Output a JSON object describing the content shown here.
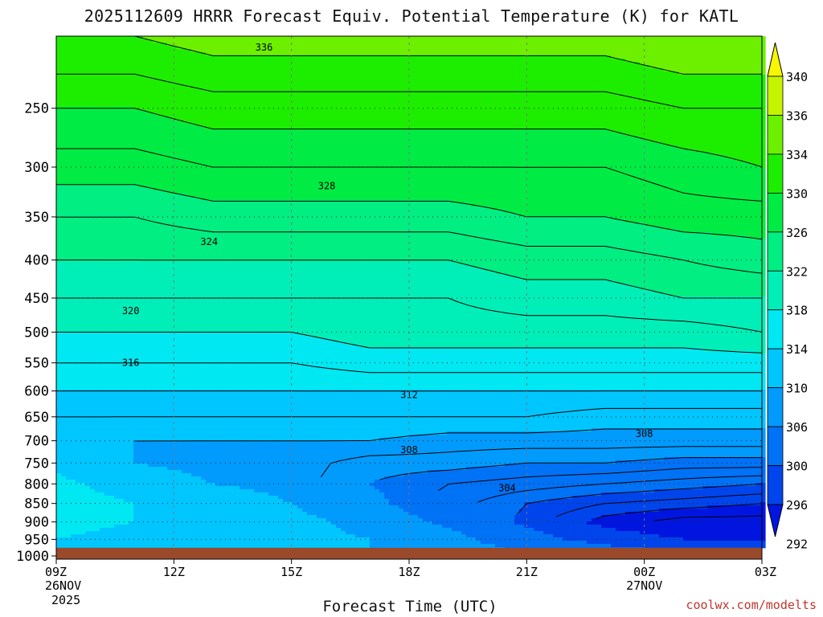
{
  "chart_data": {
    "type": "heatmap",
    "title": "2025112609 HRRR Forecast Equiv. Potential Temperature (K) for KATL",
    "xlabel": "Forecast Time (UTC)",
    "ylabel": "",
    "credit": "coolwx.com/modelts",
    "x_ticks": [
      {
        "hour": 0,
        "label": "09Z",
        "sub1": "26NOV",
        "sub2": "2025"
      },
      {
        "hour": 3,
        "label": "12Z",
        "sub1": "",
        "sub2": ""
      },
      {
        "hour": 6,
        "label": "15Z",
        "sub1": "",
        "sub2": ""
      },
      {
        "hour": 9,
        "label": "18Z",
        "sub1": "",
        "sub2": ""
      },
      {
        "hour": 12,
        "label": "21Z",
        "sub1": "",
        "sub2": ""
      },
      {
        "hour": 15,
        "label": "00Z",
        "sub1": "27NOV",
        "sub2": ""
      },
      {
        "hour": 18,
        "label": "03Z",
        "sub1": "",
        "sub2": ""
      }
    ],
    "y_scale": "log",
    "y_ticks": [
      250,
      300,
      350,
      400,
      450,
      500,
      550,
      600,
      650,
      700,
      750,
      800,
      850,
      900,
      950,
      1000
    ],
    "ylim": [
      200,
      1010
    ],
    "xlim": [
      0,
      18
    ],
    "grid": true,
    "surface_pressure_hPa": 975,
    "colorbar": {
      "levels": [
        292,
        296,
        300,
        306,
        310,
        314,
        318,
        322,
        326,
        330,
        334,
        336,
        340
      ],
      "colors": [
        "#0016e0",
        "#0045ec",
        "#0072f6",
        "#009bfd",
        "#00c6ff",
        "#00e8f2",
        "#00efb8",
        "#00ee82",
        "#00ec44",
        "#1dee00",
        "#6df000",
        "#c6f400",
        "#f7f700"
      ]
    },
    "contour_labels": [
      {
        "value": 336,
        "hour": 5.3,
        "p": 207
      },
      {
        "value": 328,
        "hour": 6.9,
        "p": 318
      },
      {
        "value": 324,
        "hour": 3.9,
        "p": 378
      },
      {
        "value": 320,
        "hour": 1.9,
        "p": 468
      },
      {
        "value": 316,
        "hour": 1.9,
        "p": 550
      },
      {
        "value": 312,
        "hour": 9.0,
        "p": 607
      },
      {
        "value": 308,
        "hour": 9.0,
        "p": 720
      },
      {
        "value": 308,
        "hour": 15.0,
        "p": 685
      },
      {
        "value": 304,
        "hour": 11.5,
        "p": 810
      }
    ],
    "profiles": [
      {
        "hour": 0,
        "theta": [
          [
            200,
            334
          ],
          [
            250,
            330
          ],
          [
            300,
            327
          ],
          [
            350,
            324
          ],
          [
            400,
            322
          ],
          [
            450,
            320
          ],
          [
            500,
            318
          ],
          [
            550,
            316
          ],
          [
            600,
            314
          ],
          [
            650,
            312
          ],
          [
            700,
            311
          ],
          [
            750,
            313
          ],
          [
            800,
            315
          ],
          [
            850,
            316
          ],
          [
            900,
            315
          ],
          [
            950,
            314
          ],
          [
            975,
            313
          ]
        ]
      },
      {
        "hour": 2,
        "theta": [
          [
            200,
            334
          ],
          [
            250,
            330
          ],
          [
            300,
            327
          ],
          [
            350,
            324
          ],
          [
            400,
            322
          ],
          [
            450,
            320
          ],
          [
            500,
            318
          ],
          [
            550,
            316
          ],
          [
            600,
            314
          ],
          [
            650,
            312
          ],
          [
            700,
            310
          ],
          [
            750,
            310
          ],
          [
            800,
            312
          ],
          [
            850,
            314
          ],
          [
            900,
            314
          ],
          [
            950,
            313
          ],
          [
            975,
            313
          ]
        ]
      },
      {
        "hour": 4,
        "theta": [
          [
            200,
            335
          ],
          [
            250,
            331
          ],
          [
            300,
            328
          ],
          [
            350,
            325
          ],
          [
            400,
            322
          ],
          [
            450,
            320
          ],
          [
            500,
            318
          ],
          [
            550,
            316
          ],
          [
            600,
            314
          ],
          [
            650,
            312
          ],
          [
            700,
            310
          ],
          [
            750,
            309
          ],
          [
            800,
            310
          ],
          [
            850,
            312
          ],
          [
            900,
            312
          ],
          [
            950,
            312
          ],
          [
            975,
            312
          ]
        ]
      },
      {
        "hour": 6,
        "theta": [
          [
            200,
            335
          ],
          [
            250,
            331
          ],
          [
            300,
            328
          ],
          [
            350,
            325
          ],
          [
            400,
            322
          ],
          [
            450,
            320
          ],
          [
            500,
            318
          ],
          [
            550,
            316
          ],
          [
            600,
            314
          ],
          [
            650,
            312
          ],
          [
            700,
            310
          ],
          [
            750,
            309
          ],
          [
            800,
            309
          ],
          [
            850,
            310
          ],
          [
            900,
            311
          ],
          [
            950,
            311
          ],
          [
            975,
            311
          ]
        ]
      },
      {
        "hour": 8,
        "theta": [
          [
            200,
            335
          ],
          [
            250,
            331
          ],
          [
            300,
            328
          ],
          [
            350,
            325
          ],
          [
            400,
            322
          ],
          [
            450,
            320
          ],
          [
            500,
            319
          ],
          [
            550,
            317
          ],
          [
            600,
            314
          ],
          [
            650,
            312
          ],
          [
            700,
            310
          ],
          [
            750,
            307
          ],
          [
            800,
            306
          ],
          [
            850,
            307
          ],
          [
            900,
            309
          ],
          [
            950,
            310
          ],
          [
            975,
            310
          ]
        ]
      },
      {
        "hour": 10,
        "theta": [
          [
            200,
            335
          ],
          [
            250,
            331
          ],
          [
            300,
            328
          ],
          [
            350,
            325
          ],
          [
            400,
            322
          ],
          [
            450,
            320
          ],
          [
            500,
            319
          ],
          [
            550,
            317
          ],
          [
            600,
            314
          ],
          [
            650,
            312
          ],
          [
            700,
            309
          ],
          [
            750,
            307
          ],
          [
            800,
            304
          ],
          [
            850,
            303
          ],
          [
            900,
            305
          ],
          [
            950,
            308
          ],
          [
            975,
            309
          ]
        ]
      },
      {
        "hour": 12,
        "theta": [
          [
            200,
            335
          ],
          [
            250,
            331
          ],
          [
            300,
            328
          ],
          [
            350,
            326
          ],
          [
            400,
            323
          ],
          [
            450,
            321
          ],
          [
            500,
            319
          ],
          [
            550,
            317
          ],
          [
            600,
            314
          ],
          [
            650,
            312
          ],
          [
            700,
            309
          ],
          [
            750,
            306
          ],
          [
            800,
            303
          ],
          [
            850,
            300
          ],
          [
            900,
            299
          ],
          [
            950,
            302
          ],
          [
            975,
            305
          ]
        ]
      },
      {
        "hour": 14,
        "theta": [
          [
            200,
            335
          ],
          [
            250,
            331
          ],
          [
            300,
            328
          ],
          [
            350,
            326
          ],
          [
            400,
            323
          ],
          [
            450,
            321
          ],
          [
            500,
            319
          ],
          [
            550,
            317
          ],
          [
            600,
            314
          ],
          [
            650,
            311
          ],
          [
            700,
            309
          ],
          [
            750,
            306
          ],
          [
            800,
            302
          ],
          [
            850,
            298
          ],
          [
            900,
            295
          ],
          [
            950,
            298
          ],
          [
            975,
            301
          ]
        ]
      },
      {
        "hour": 16,
        "theta": [
          [
            200,
            336
          ],
          [
            250,
            332
          ],
          [
            300,
            329
          ],
          [
            350,
            327
          ],
          [
            400,
            324
          ],
          [
            450,
            322
          ],
          [
            500,
            319
          ],
          [
            550,
            317
          ],
          [
            600,
            314
          ],
          [
            650,
            311
          ],
          [
            700,
            309
          ],
          [
            750,
            305
          ],
          [
            800,
            301
          ],
          [
            850,
            297
          ],
          [
            900,
            293
          ],
          [
            950,
            296
          ],
          [
            975,
            299
          ]
        ]
      },
      {
        "hour": 18,
        "theta": [
          [
            200,
            336
          ],
          [
            250,
            332
          ],
          [
            300,
            330
          ],
          [
            350,
            327
          ],
          [
            400,
            325
          ],
          [
            450,
            322
          ],
          [
            500,
            320
          ],
          [
            550,
            317
          ],
          [
            600,
            314
          ],
          [
            650,
            311
          ],
          [
            700,
            309
          ],
          [
            750,
            305
          ],
          [
            800,
            300
          ],
          [
            850,
            296
          ],
          [
            900,
            293
          ],
          [
            950,
            296
          ],
          [
            975,
            299
          ]
        ]
      }
    ]
  }
}
